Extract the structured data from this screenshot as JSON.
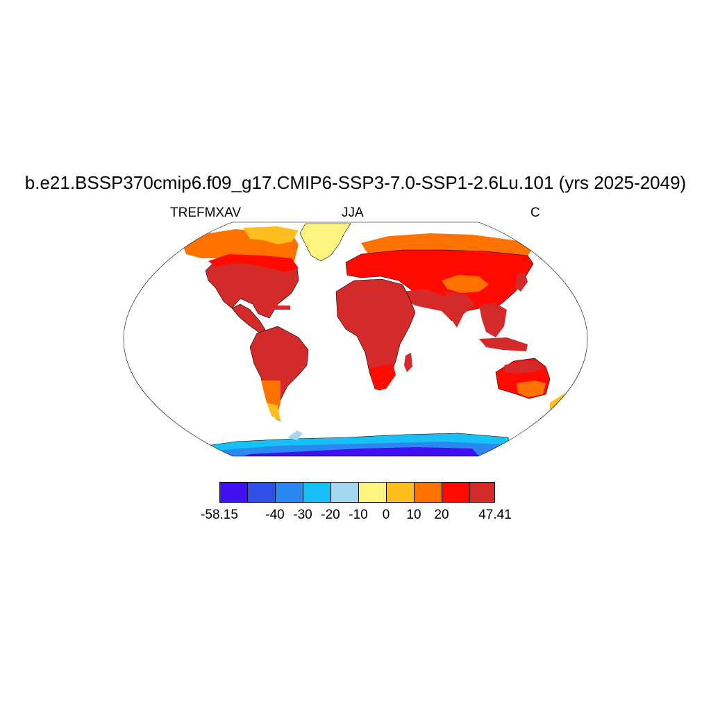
{
  "title": "b.e21.BSSP370cmip6.f09_g17.CMIP6-SSP3-7.0-SSP1-2.6Lu.101 (yrs 2025-2049)",
  "left_label": "TREFMXAV",
  "center_label": "JJA",
  "right_label": "C",
  "colorbar": {
    "colors": [
      "#4010f0",
      "#2e50e6",
      "#2a88f0",
      "#18c0f8",
      "#a4d8f0",
      "#fff480",
      "#ffbe1e",
      "#ff7200",
      "#ff0a00",
      "#d42a2a"
    ],
    "labels": [
      "-58.15",
      "-40",
      "-30",
      "-20",
      "-10",
      "0",
      "10",
      "20",
      "47.41"
    ]
  },
  "legend_colors": {
    "land_hot": "#d42a2a",
    "land_warm": "#ff0a00",
    "land_mild": "#ff7200",
    "land_cool": "#ffbe1e",
    "land_cold": "#fff480",
    "ice_cold": "#2e50e6",
    "ice_very_cold": "#4010f0"
  }
}
